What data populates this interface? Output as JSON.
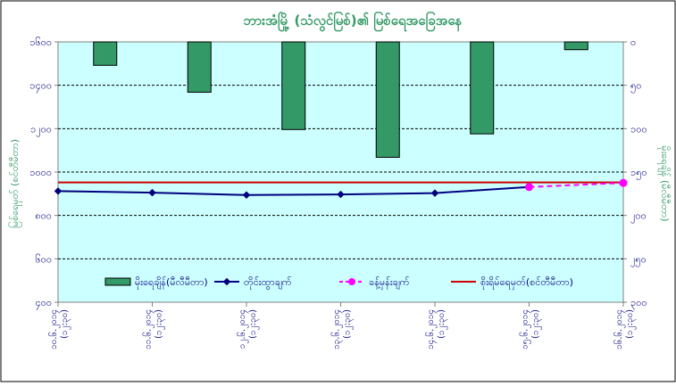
{
  "chart_data": {
    "type": "bar",
    "title": "ဘားအံမြို့ (သံလွင်မြစ်)၏ မြစ်ရေအခြေအနေ",
    "ylabel_left": "မြစ်ရေမှတ် (စင်တီမီတာ)",
    "ylabel_right": "မိုးရေချိန် (မီလီမီတာ)",
    "x": [
      "၁၀.၆.၂၀၁၄ (၁၂:၃၀)",
      "၁၁.၆.၂၀၁၄ (၁၂:၃၀)",
      "၁၂.၆.၂၀၁၄ (၁၂:၃၀)",
      "၁၃.၆.၂၀၁၄ (၁၂:၃၀)",
      "၁၄.၆.၂၀၁၄ (၁၂:၃၀)",
      "၁၅.၆.၂၀၁၄ (၁၂:၃၀)",
      "၁၆.၆.၂၀၁၄ (၁၂:၃၀)"
    ],
    "left_axis": {
      "min": 400,
      "max": 1600,
      "ticks": [
        400,
        600,
        800,
        1000,
        1200,
        1400,
        1600
      ],
      "tick_labels": [
        "၄၀၀",
        "၆၀၀",
        "၈၀၀",
        "၁၀၀၀",
        "၁၂၀၀",
        "၁၄၀၀",
        "၁၆၀၀"
      ]
    },
    "right_axis": {
      "min": 0,
      "max": 300,
      "inverted": true,
      "ticks": [
        0,
        50,
        100,
        150,
        200,
        250,
        300
      ],
      "tick_labels": [
        "၀",
        "၅၀",
        "၁၀၀",
        "၁၅၀",
        "၂၀၀",
        "၂၅၀",
        "၃၀၀"
      ]
    },
    "series": [
      {
        "name": "မိုးရေချိန်(မီလီမီတာ)",
        "kind": "bar",
        "axis": "right",
        "color": "#339966",
        "values": [
          27,
          58,
          101,
          133,
          106,
          9,
          null
        ]
      },
      {
        "name": "တိုင်းထွာချက်",
        "kind": "line",
        "axis": "left",
        "color": "#000080",
        "values": [
          912,
          905,
          894,
          897,
          903,
          931,
          null
        ]
      },
      {
        "name": "ခန့်မှန်းချက်",
        "kind": "dashed-line",
        "axis": "left",
        "color": "#ff00ff",
        "values": [
          null,
          null,
          null,
          null,
          null,
          931,
          950
        ]
      },
      {
        "name": "စိုးရိမ်ရေမှတ်(စင်တီမီတာ)",
        "kind": "hline",
        "axis": "left",
        "color": "#cc0000",
        "value": 952
      }
    ],
    "grid": true,
    "legend_position": "bottom-inside"
  },
  "colors": {
    "plot_bg": "#ccffff",
    "title": "#339966",
    "tick_text": "#000080",
    "axis_title": "#339966"
  }
}
